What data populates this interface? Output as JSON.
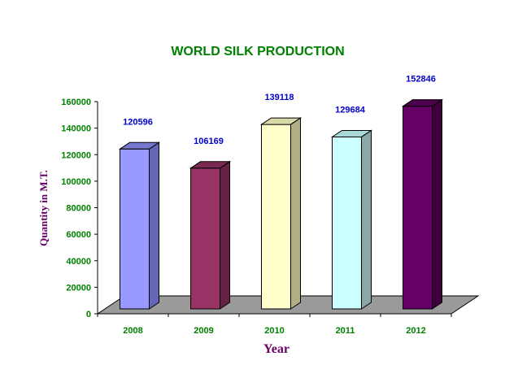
{
  "chart_data": {
    "type": "bar",
    "title": "WORLD SILK PRODUCTION",
    "xlabel": "Year",
    "ylabel": "Quantity in M.T.",
    "categories": [
      "2008",
      "2009",
      "2010",
      "2011",
      "2012"
    ],
    "values": [
      120596,
      106169,
      139118,
      129684,
      152846
    ],
    "data_labels": [
      "120596",
      "106169",
      "139118",
      "129684",
      "152846"
    ],
    "yticks": [
      "0",
      "20000",
      "40000",
      "60000",
      "80000",
      "100000",
      "120000",
      "140000",
      "160000"
    ],
    "ylim": [
      0,
      160000
    ],
    "grid": false,
    "legend": "none",
    "style": "3d-column",
    "colors": {
      "title": "#008000",
      "ticks": "#008000",
      "axis_labels": "#660066",
      "data_labels": "#0000cc",
      "floor": "#9a9a9a",
      "bar_fronts": [
        "#9999ff",
        "#993366",
        "#ffffcc",
        "#ccffff",
        "#660066"
      ],
      "bar_sides": [
        "#6666b8",
        "#662244",
        "#b0b084",
        "#8aa8a8",
        "#3d003d"
      ],
      "bar_tops": [
        "#7777d0",
        "#7a2a52",
        "#d8d8a8",
        "#a8d8d8",
        "#4d004d"
      ]
    }
  }
}
